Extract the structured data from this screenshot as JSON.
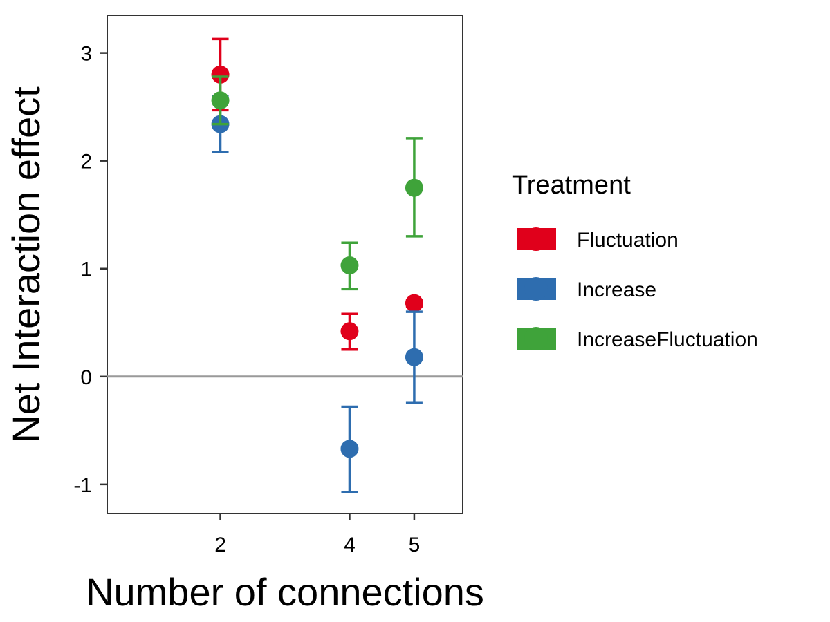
{
  "chart_data": {
    "type": "scatter",
    "xlabel": "Number of connections",
    "ylabel": "Net Interaction effect",
    "x_ticks": [
      2,
      4,
      5
    ],
    "y_ticks": [
      -1,
      0,
      1,
      2,
      3
    ],
    "xlim": [
      0.25,
      5.75
    ],
    "ylim": [
      -1.27,
      3.35
    ],
    "reference_line_y": 0,
    "grid": false,
    "legend": {
      "title": "Treatment",
      "position": "right"
    },
    "series": [
      {
        "name": "Fluctuation",
        "color": "#e0001b",
        "points": [
          {
            "x": 2,
            "y": 2.8,
            "lo": 2.47,
            "hi": 3.13
          },
          {
            "x": 4,
            "y": 0.42,
            "lo": 0.25,
            "hi": 0.58
          },
          {
            "x": 5,
            "y": 0.68,
            "lo": 0.65,
            "hi": 0.71
          }
        ]
      },
      {
        "name": "Increase",
        "color": "#2e6daf",
        "points": [
          {
            "x": 2,
            "y": 2.34,
            "lo": 2.08,
            "hi": 2.6
          },
          {
            "x": 4,
            "y": -0.67,
            "lo": -1.07,
            "hi": -0.28
          },
          {
            "x": 5,
            "y": 0.18,
            "lo": -0.24,
            "hi": 0.6
          }
        ]
      },
      {
        "name": "IncreaseFluctuation",
        "color": "#3fa33a",
        "points": [
          {
            "x": 2,
            "y": 2.56,
            "lo": 2.34,
            "hi": 2.78
          },
          {
            "x": 4,
            "y": 1.03,
            "lo": 0.81,
            "hi": 1.24
          },
          {
            "x": 5,
            "y": 1.75,
            "lo": 1.3,
            "hi": 2.21
          }
        ]
      }
    ]
  }
}
